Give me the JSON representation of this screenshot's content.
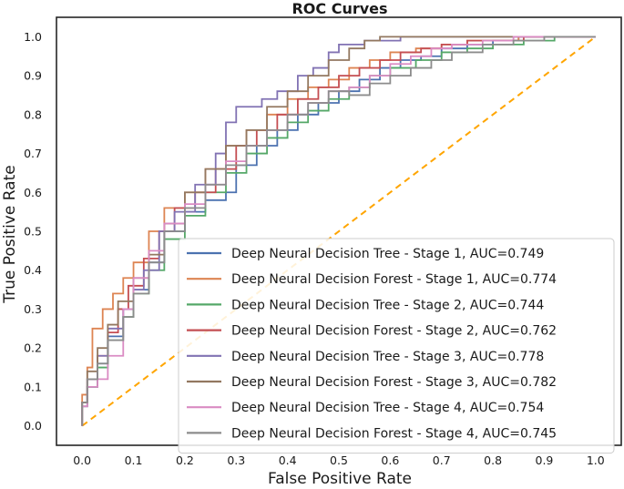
{
  "chart_data": {
    "type": "line",
    "title": "ROC Curves",
    "xlabel": "False Positive Rate",
    "ylabel": "True Positive Rate",
    "xlim": [
      -0.05,
      1.05
    ],
    "ylim": [
      -0.05,
      1.05
    ],
    "x_ticks": [
      "0.0",
      "0.1",
      "0.2",
      "0.3",
      "0.4",
      "0.5",
      "0.6",
      "0.7",
      "0.8",
      "0.9",
      "1.0"
    ],
    "y_ticks": [
      "0.0",
      "0.1",
      "0.2",
      "0.3",
      "0.4",
      "0.5",
      "0.6",
      "0.7",
      "0.8",
      "0.9",
      "1.0"
    ],
    "grid": false,
    "legend_position": "lower-right",
    "reference_line": {
      "x": [
        0,
        1
      ],
      "y": [
        0,
        1
      ],
      "color": "#FFA500",
      "style": "dashed"
    },
    "series": [
      {
        "name": "Deep Neural Decision Tree - Stage 1, AUC=0.749",
        "color": "#4C72B0",
        "x": [
          0,
          0.01,
          0.03,
          0.05,
          0.08,
          0.1,
          0.13,
          0.16,
          0.2,
          0.24,
          0.28,
          0.3,
          0.34,
          0.38,
          0.42,
          0.46,
          0.5,
          0.54,
          0.58,
          0.62,
          0.66,
          0.7,
          0.75,
          0.8,
          0.85,
          0.9,
          1.0
        ],
        "y": [
          0,
          0.06,
          0.1,
          0.16,
          0.23,
          0.3,
          0.35,
          0.42,
          0.5,
          0.55,
          0.58,
          0.6,
          0.67,
          0.72,
          0.76,
          0.8,
          0.83,
          0.86,
          0.89,
          0.92,
          0.94,
          0.95,
          0.97,
          0.98,
          0.99,
          1.0,
          1.0
        ]
      },
      {
        "name": "Deep Neural Decision Forest - Stage 1, AUC=0.774",
        "color": "#DD8452",
        "x": [
          0,
          0.01,
          0.02,
          0.04,
          0.06,
          0.08,
          0.1,
          0.13,
          0.16,
          0.2,
          0.24,
          0.28,
          0.32,
          0.36,
          0.4,
          0.44,
          0.48,
          0.52,
          0.56,
          0.6,
          0.65,
          0.7,
          0.75,
          0.8,
          0.85,
          0.9,
          1.0
        ],
        "y": [
          0,
          0.08,
          0.15,
          0.25,
          0.3,
          0.34,
          0.38,
          0.42,
          0.5,
          0.56,
          0.6,
          0.66,
          0.72,
          0.76,
          0.8,
          0.84,
          0.87,
          0.89,
          0.92,
          0.94,
          0.96,
          0.97,
          0.98,
          0.99,
          0.99,
          1.0,
          1.0
        ]
      },
      {
        "name": "Deep Neural Decision Tree - Stage 2, AUC=0.744",
        "color": "#55A868",
        "x": [
          0,
          0.01,
          0.03,
          0.05,
          0.08,
          0.1,
          0.13,
          0.16,
          0.2,
          0.24,
          0.28,
          0.32,
          0.36,
          0.4,
          0.44,
          0.48,
          0.52,
          0.56,
          0.6,
          0.65,
          0.7,
          0.75,
          0.8,
          0.86,
          0.92,
          1.0
        ],
        "y": [
          0,
          0.05,
          0.1,
          0.15,
          0.22,
          0.28,
          0.34,
          0.4,
          0.48,
          0.54,
          0.6,
          0.65,
          0.7,
          0.74,
          0.78,
          0.81,
          0.84,
          0.87,
          0.9,
          0.92,
          0.94,
          0.96,
          0.97,
          0.98,
          0.99,
          1.0
        ]
      },
      {
        "name": "Deep Neural Decision Forest - Stage 2, AUC=0.762",
        "color": "#C44E52",
        "x": [
          0,
          0.01,
          0.03,
          0.05,
          0.07,
          0.09,
          0.12,
          0.15,
          0.18,
          0.22,
          0.26,
          0.3,
          0.34,
          0.38,
          0.42,
          0.46,
          0.5,
          0.54,
          0.58,
          0.62,
          0.66,
          0.7,
          0.75,
          0.8,
          0.86,
          0.92,
          1.0
        ],
        "y": [
          0,
          0.06,
          0.12,
          0.18,
          0.24,
          0.3,
          0.36,
          0.43,
          0.5,
          0.56,
          0.6,
          0.66,
          0.72,
          0.76,
          0.8,
          0.84,
          0.87,
          0.9,
          0.92,
          0.94,
          0.96,
          0.97,
          0.98,
          0.99,
          0.99,
          1.0,
          1.0
        ]
      },
      {
        "name": "Deep Neural Decision Tree - Stage 3, AUC=0.778",
        "color": "#8172B3",
        "x": [
          0,
          0.01,
          0.03,
          0.05,
          0.08,
          0.1,
          0.12,
          0.15,
          0.18,
          0.22,
          0.26,
          0.28,
          0.3,
          0.32,
          0.35,
          0.38,
          0.42,
          0.45,
          0.48,
          0.5,
          0.52,
          0.55,
          0.58,
          0.62,
          0.66,
          0.7,
          0.75,
          0.8,
          0.9,
          1.0
        ],
        "y": [
          0,
          0.05,
          0.12,
          0.18,
          0.25,
          0.3,
          0.35,
          0.4,
          0.5,
          0.55,
          0.62,
          0.7,
          0.78,
          0.82,
          0.82,
          0.84,
          0.86,
          0.9,
          0.92,
          0.96,
          0.98,
          0.98,
          0.99,
          0.99,
          1.0,
          1.0,
          1.0,
          1.0,
          1.0,
          1.0
        ]
      },
      {
        "name": "Deep Neural Decision Forest - Stage 3, AUC=0.782",
        "color": "#937860",
        "x": [
          0,
          0.01,
          0.03,
          0.05,
          0.07,
          0.1,
          0.13,
          0.16,
          0.2,
          0.24,
          0.28,
          0.32,
          0.36,
          0.4,
          0.44,
          0.48,
          0.52,
          0.55,
          0.58,
          0.6,
          0.64,
          0.7,
          0.8,
          0.9,
          1.0
        ],
        "y": [
          0,
          0.06,
          0.14,
          0.2,
          0.26,
          0.32,
          0.38,
          0.44,
          0.52,
          0.6,
          0.66,
          0.72,
          0.76,
          0.82,
          0.86,
          0.9,
          0.94,
          0.97,
          0.99,
          1.0,
          1.0,
          1.0,
          1.0,
          1.0,
          1.0
        ]
      },
      {
        "name": "Deep Neural Decision Tree - Stage 4, AUC=0.754",
        "color": "#DA8BC3",
        "x": [
          0,
          0.01,
          0.03,
          0.05,
          0.08,
          0.1,
          0.13,
          0.16,
          0.2,
          0.24,
          0.28,
          0.32,
          0.36,
          0.4,
          0.44,
          0.48,
          0.52,
          0.56,
          0.6,
          0.64,
          0.68,
          0.72,
          0.78,
          0.84,
          0.9,
          1.0
        ],
        "y": [
          0,
          0.05,
          0.1,
          0.12,
          0.18,
          0.3,
          0.38,
          0.45,
          0.52,
          0.57,
          0.62,
          0.68,
          0.72,
          0.76,
          0.8,
          0.83,
          0.86,
          0.87,
          0.9,
          0.93,
          0.95,
          0.97,
          0.98,
          0.99,
          1.0,
          1.0
        ]
      },
      {
        "name": "Deep Neural Decision Forest - Stage 4, AUC=0.745",
        "color": "#8C8C8C",
        "x": [
          0,
          0.01,
          0.03,
          0.05,
          0.08,
          0.1,
          0.13,
          0.16,
          0.2,
          0.24,
          0.28,
          0.32,
          0.36,
          0.4,
          0.44,
          0.48,
          0.52,
          0.56,
          0.6,
          0.64,
          0.68,
          0.72,
          0.78,
          0.84,
          0.9,
          1.0
        ],
        "y": [
          0,
          0.06,
          0.12,
          0.16,
          0.22,
          0.28,
          0.34,
          0.42,
          0.5,
          0.56,
          0.62,
          0.67,
          0.72,
          0.76,
          0.8,
          0.83,
          0.86,
          0.85,
          0.88,
          0.9,
          0.92,
          0.94,
          0.96,
          0.98,
          0.99,
          1.0
        ]
      }
    ]
  }
}
